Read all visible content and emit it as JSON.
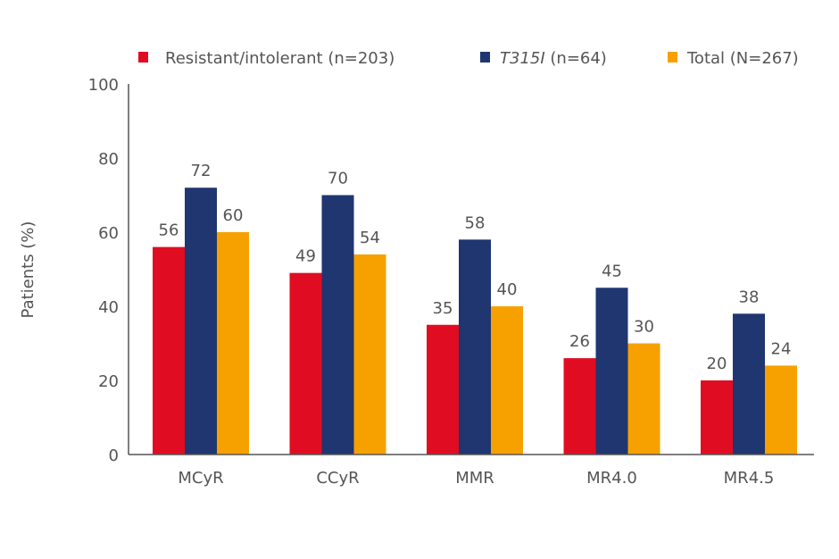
{
  "chart_data": {
    "type": "bar",
    "title": "",
    "xlabel": "",
    "ylabel": "Patients (%)",
    "ylim": [
      0,
      100
    ],
    "yticks": [
      0,
      20,
      40,
      60,
      80,
      100
    ],
    "grid": false,
    "legend_placement": "top",
    "categories": [
      "MCyR",
      "CCyR",
      "MMR",
      "MR4.0",
      "MR4.5"
    ],
    "series": [
      {
        "name": "Resistant/intolerant (n=203)",
        "name_parts": [
          {
            "text": "Resistant/intolerant (n=203)",
            "italic": false
          }
        ],
        "color": "#E00D22",
        "values": [
          56,
          49,
          35,
          26,
          20
        ]
      },
      {
        "name": "T315I (n=64)",
        "name_parts": [
          {
            "text": "T315I",
            "italic": true
          },
          {
            "text": " (n=64)",
            "italic": false
          }
        ],
        "color": "#1F3670",
        "values": [
          72,
          70,
          58,
          45,
          38
        ]
      },
      {
        "name": "Total (N=267)",
        "name_parts": [
          {
            "text": "Total (N=267)",
            "italic": false
          }
        ],
        "color": "#F7A100",
        "values": [
          60,
          54,
          40,
          30,
          24
        ]
      }
    ]
  }
}
